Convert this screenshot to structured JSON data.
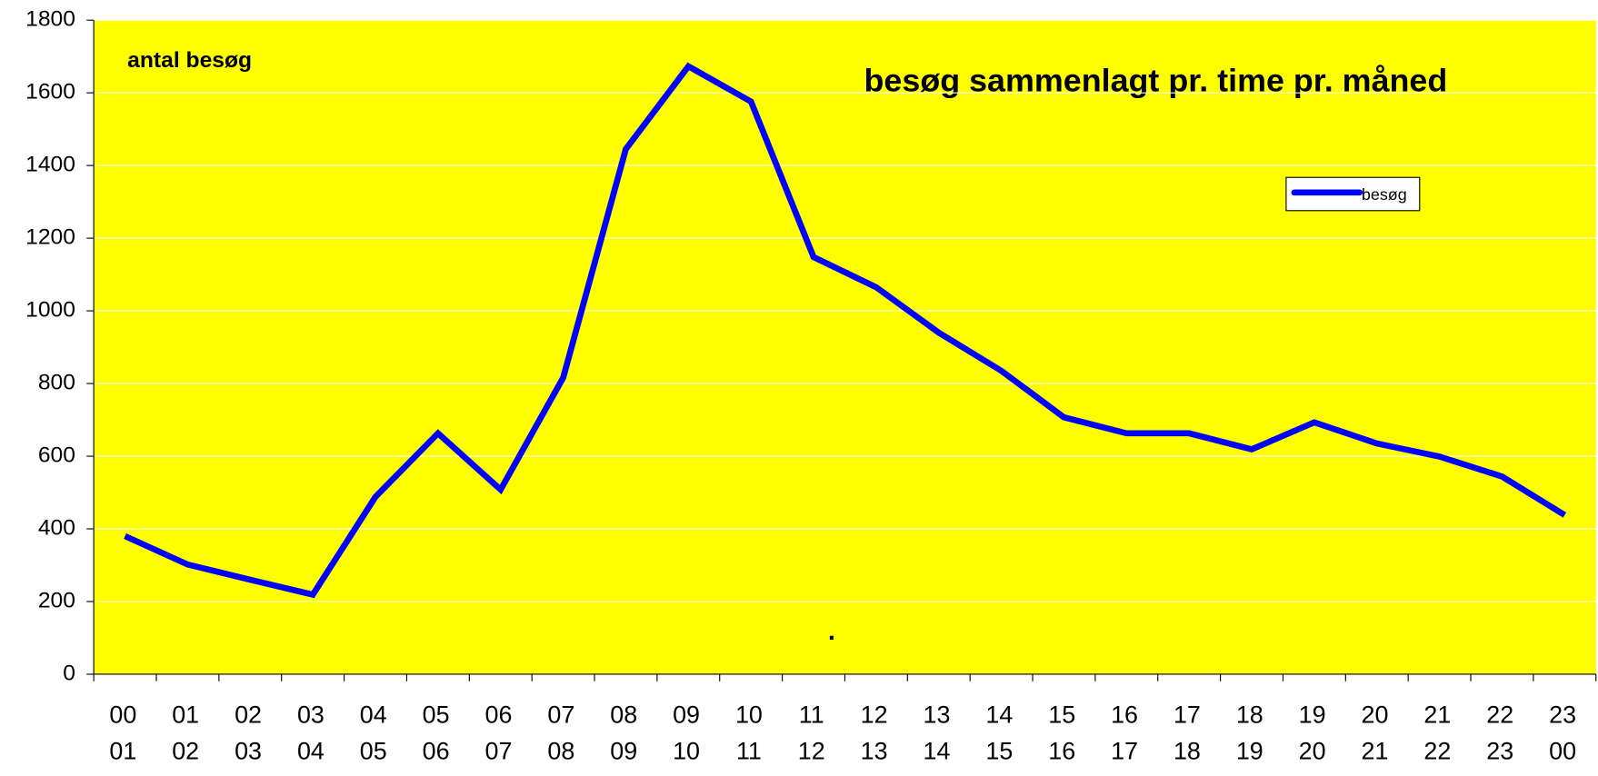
{
  "chart_data": {
    "type": "line",
    "title": "besøg sammenlagt pr. time pr. måned",
    "ylabel": "antal besøg",
    "annotation": ".",
    "categories": [
      [
        "00",
        "01"
      ],
      [
        "01",
        "02"
      ],
      [
        "02",
        "03"
      ],
      [
        "03",
        "04"
      ],
      [
        "04",
        "05"
      ],
      [
        "05",
        "06"
      ],
      [
        "06",
        "07"
      ],
      [
        "07",
        "08"
      ],
      [
        "08",
        "09"
      ],
      [
        "09",
        "10"
      ],
      [
        "10",
        "11"
      ],
      [
        "11",
        "12"
      ],
      [
        "12",
        "13"
      ],
      [
        "13",
        "14"
      ],
      [
        "14",
        "15"
      ],
      [
        "15",
        "16"
      ],
      [
        "16",
        "17"
      ],
      [
        "17",
        "18"
      ],
      [
        "18",
        "19"
      ],
      [
        "19",
        "20"
      ],
      [
        "20",
        "21"
      ],
      [
        "21",
        "22"
      ],
      [
        "22",
        "23"
      ],
      [
        "23",
        "00"
      ]
    ],
    "series": [
      {
        "name": "besøg",
        "color": "#0000ff",
        "values": [
          380,
          302,
          260,
          219,
          488,
          663,
          508,
          816,
          1445,
          1673,
          1576,
          1148,
          1065,
          940,
          835,
          707,
          663,
          663,
          619,
          693,
          635,
          599,
          544,
          438
        ]
      }
    ],
    "ylim": [
      0,
      1800
    ],
    "yticks": [
      0,
      200,
      400,
      600,
      800,
      1000,
      1200,
      1400,
      1600,
      1800
    ],
    "grid": true,
    "background": "#ffff00",
    "legend": "upper right"
  }
}
